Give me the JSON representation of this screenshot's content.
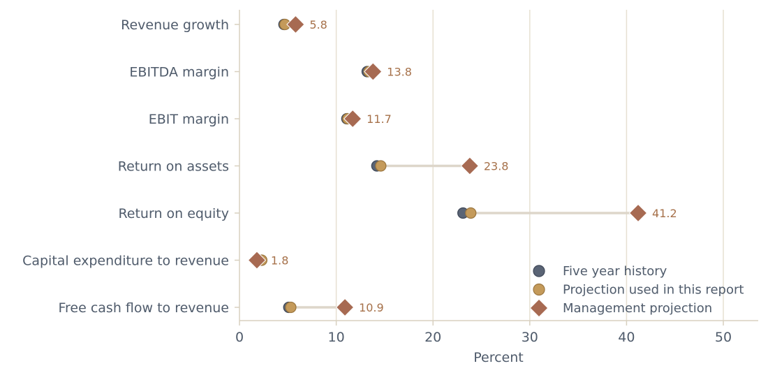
{
  "chart_data": {
    "type": "dot-range",
    "title": "",
    "xlabel": "Percent",
    "ylabel": "",
    "xlim": [
      0,
      53.7
    ],
    "xticks": [
      0,
      10,
      20,
      30,
      40,
      50
    ],
    "grid": "vertical",
    "legend_position": "bottom-right",
    "categories": [
      "Revenue growth",
      "EBITDA margin",
      "EBIT margin",
      "Return on assets",
      "Return on equity",
      "Capital expenditure to revenue",
      "Free cash flow to revenue"
    ],
    "series": [
      {
        "name": "Five year history",
        "marker": "circle",
        "color": "#5a6475",
        "values": [
          4.6,
          13.2,
          11.1,
          14.2,
          23.1,
          2.2,
          5.1
        ]
      },
      {
        "name": "Projection used in this report",
        "marker": "circle",
        "color": "#c49a5a",
        "values": [
          4.7,
          13.4,
          11.2,
          14.6,
          23.9,
          2.3,
          5.3
        ]
      },
      {
        "name": "Management projection",
        "marker": "diamond",
        "color": "#a76a52",
        "values": [
          5.8,
          13.8,
          11.7,
          23.8,
          41.2,
          1.8,
          10.9
        ]
      }
    ],
    "data_labels": [
      "5.8",
      "13.8",
      "11.7",
      "23.8",
      "41.2",
      "1.8",
      "10.9"
    ],
    "colors": {
      "connector": "#ddd6ca",
      "grid": "#e6e0d2",
      "axis": "#d8d0bf",
      "text": "#4f5b6b",
      "data_label": "#a6714a"
    }
  }
}
